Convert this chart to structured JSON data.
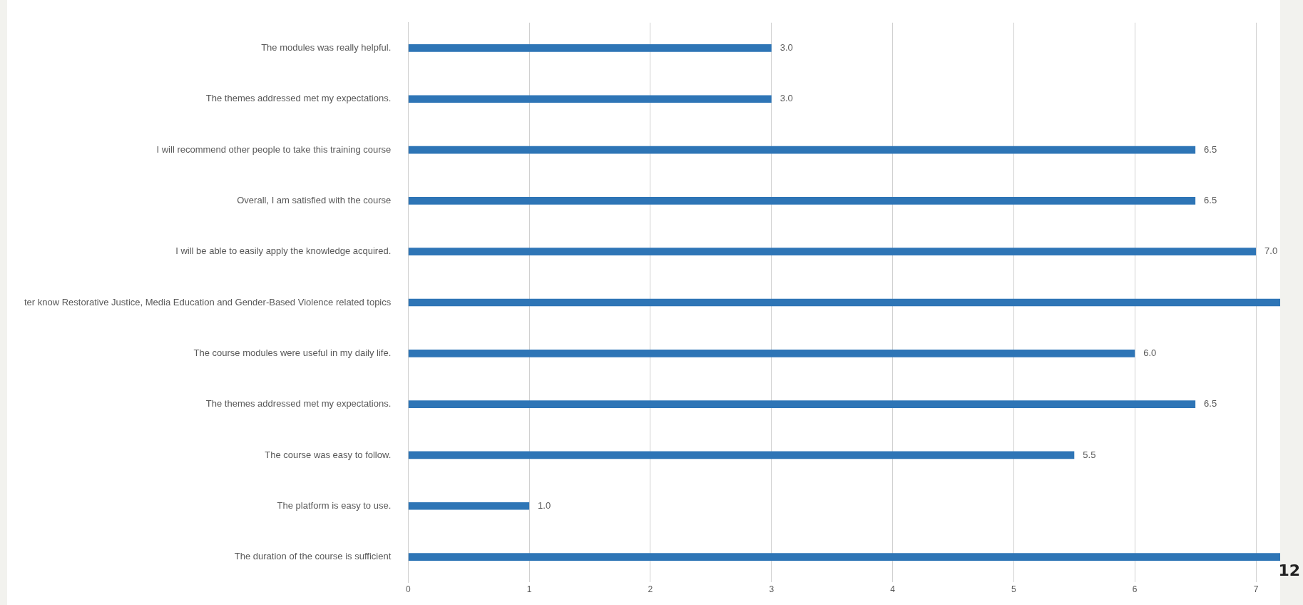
{
  "chart_data": {
    "type": "bar",
    "orientation": "horizontal",
    "categories": [
      "The modules was really helpful.",
      "The themes addressed met my expectations.",
      "I will recommend other people to take this training course",
      "Overall, I am satisfied with the course",
      "I will be able to easily apply the knowledge acquired.",
      "ter know Restorative Justice, Media Education and Gender-Based Violence related topics",
      "The course modules were useful in my daily life.",
      "The themes addressed met my expectations.",
      "The course was easy to follow.",
      "The platform is easy to use.",
      "The duration of the course is sufficient"
    ],
    "values": [
      3.0,
      3.0,
      6.5,
      6.5,
      7.0,
      7.2,
      6.0,
      6.5,
      5.5,
      1.0,
      7.2
    ],
    "value_labels": [
      "3.0",
      "3.0",
      "6.5",
      "6.5",
      "7.0",
      null,
      "6.0",
      "6.5",
      "5.5",
      "1.0",
      null
    ],
    "color": "#2e75b6",
    "xlim": [
      0,
      7.2
    ],
    "xticks": [
      0,
      1,
      2,
      3,
      4,
      5,
      6,
      7
    ],
    "grid": "x",
    "legend": false,
    "annotations": [
      "12"
    ]
  }
}
